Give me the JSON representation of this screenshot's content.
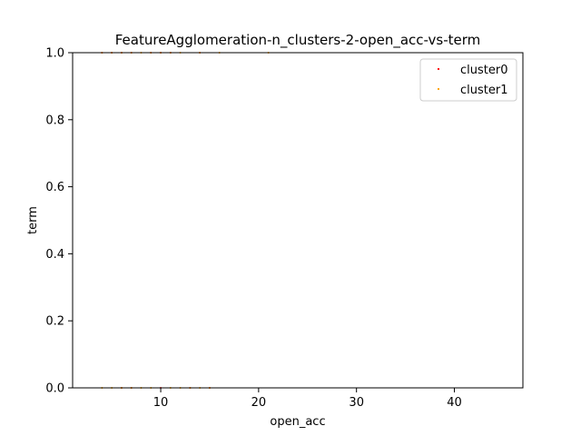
{
  "chart_data": {
    "type": "scatter",
    "title": "FeatureAgglomeration-n_clusters-2-open_acc-vs-term",
    "xlabel": "open_acc",
    "ylabel": "term",
    "xlim": [
      1,
      47
    ],
    "ylim": [
      0,
      1
    ],
    "xticks": [
      10,
      20,
      30,
      40
    ],
    "yticks": [
      0.0,
      0.2,
      0.4,
      0.6,
      0.8,
      1.0
    ],
    "ytick_labels": [
      "0.0",
      "0.2",
      "0.4",
      "0.6",
      "0.8",
      "1.0"
    ],
    "legend_position": "top-right",
    "grid": false,
    "series": [
      {
        "name": "cluster0",
        "color": "#ff0000",
        "points": [
          {
            "x": 4,
            "y": 1
          },
          {
            "x": 5,
            "y": 1
          },
          {
            "x": 6,
            "y": 1
          },
          {
            "x": 7,
            "y": 1
          },
          {
            "x": 9,
            "y": 1
          },
          {
            "x": 10,
            "y": 1
          },
          {
            "x": 11,
            "y": 1
          },
          {
            "x": 14,
            "y": 1
          },
          {
            "x": 6,
            "y": 0
          },
          {
            "x": 7,
            "y": 0
          },
          {
            "x": 10,
            "y": 0
          },
          {
            "x": 13,
            "y": 0
          },
          {
            "x": 15,
            "y": 0
          }
        ]
      },
      {
        "name": "cluster1",
        "color": "#ffa500",
        "points": [
          {
            "x": 4,
            "y": 1
          },
          {
            "x": 5,
            "y": 1
          },
          {
            "x": 6,
            "y": 1
          },
          {
            "x": 7,
            "y": 1
          },
          {
            "x": 8,
            "y": 1
          },
          {
            "x": 9,
            "y": 1
          },
          {
            "x": 10,
            "y": 1
          },
          {
            "x": 11,
            "y": 1
          },
          {
            "x": 12,
            "y": 1
          },
          {
            "x": 14,
            "y": 1
          },
          {
            "x": 16,
            "y": 1
          },
          {
            "x": 21,
            "y": 1
          },
          {
            "x": 4,
            "y": 0
          },
          {
            "x": 5,
            "y": 0
          },
          {
            "x": 6,
            "y": 0
          },
          {
            "x": 7,
            "y": 0
          },
          {
            "x": 8,
            "y": 0
          },
          {
            "x": 9,
            "y": 0
          },
          {
            "x": 11,
            "y": 0
          },
          {
            "x": 12,
            "y": 0
          },
          {
            "x": 13,
            "y": 0
          },
          {
            "x": 14,
            "y": 0
          },
          {
            "x": 15,
            "y": 0
          }
        ]
      }
    ]
  }
}
